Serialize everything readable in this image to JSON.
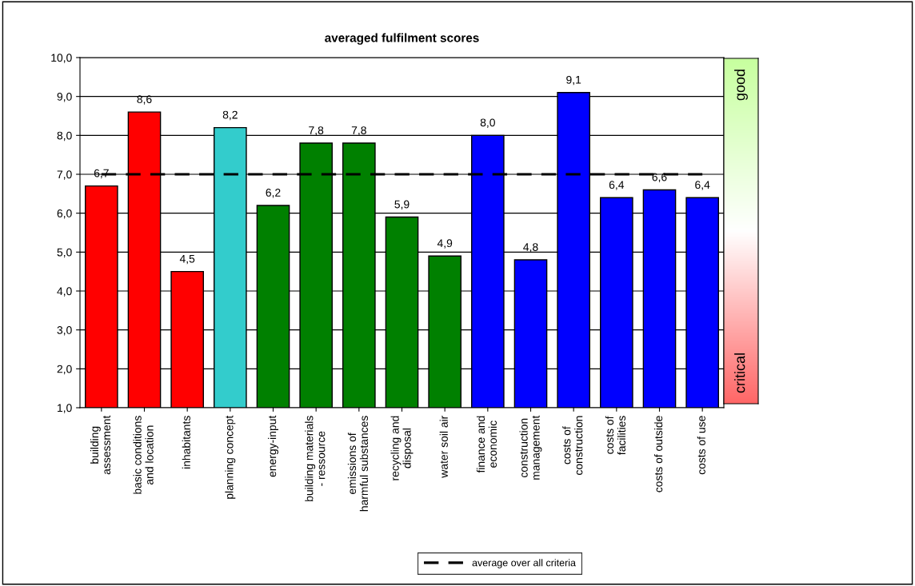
{
  "chart_data": {
    "type": "bar",
    "title": "averaged fulfilment scores",
    "categories": [
      "building assessment",
      "basic conditions and location",
      "inhabitants",
      "planning concept",
      "energy-input",
      "building materials - ressource",
      "emissions of harmful substances",
      "recycling and disposal",
      "water soil air",
      "finance and economic",
      "construction management",
      "costs of construction",
      "costs of facilities",
      "costs of outside",
      "costs of use"
    ],
    "values": [
      6.7,
      8.6,
      4.5,
      8.2,
      6.2,
      7.8,
      7.8,
      5.9,
      4.9,
      8.0,
      4.8,
      9.1,
      6.4,
      6.6,
      6.4
    ],
    "value_labels": [
      "6,7",
      "8,6",
      "4,5",
      "8,2",
      "6,2",
      "7,8",
      "7,8",
      "5,9",
      "4,9",
      "8,0",
      "4,8",
      "9,1",
      "6,4",
      "6,6",
      "6,4"
    ],
    "colors": [
      "#ff0000",
      "#ff0000",
      "#ff0000",
      "#33cccc",
      "#008000",
      "#008000",
      "#008000",
      "#008000",
      "#008000",
      "#0000ff",
      "#0000ff",
      "#0000ff",
      "#0000ff",
      "#0000ff",
      "#0000ff"
    ],
    "ylim": [
      1,
      10
    ],
    "yticks": [
      {
        "value": 1,
        "label": "1,0"
      },
      {
        "value": 2,
        "label": "2,0"
      },
      {
        "value": 3,
        "label": "3,0"
      },
      {
        "value": 4,
        "label": "4,0"
      },
      {
        "value": 5,
        "label": "5,0"
      },
      {
        "value": 6,
        "label": "6,0"
      },
      {
        "value": 7,
        "label": "7,0"
      },
      {
        "value": 8,
        "label": "8,0"
      },
      {
        "value": 9,
        "label": "9,0"
      },
      {
        "value": 10,
        "label": "10,0"
      }
    ],
    "grid": "y",
    "ref_lines": [
      {
        "axis": "y",
        "value": 7,
        "label": "average over all criteria",
        "color": "#000000",
        "line_style": "dashed"
      }
    ],
    "legend": "bottom",
    "annotations": [
      "good",
      "critical"
    ]
  }
}
